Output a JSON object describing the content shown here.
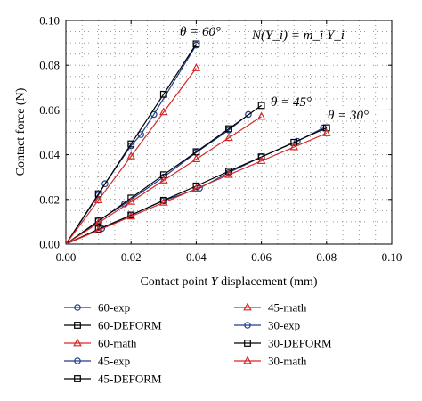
{
  "chart_data": {
    "type": "line",
    "xlabel_parts": [
      "Contact point ",
      "Y",
      " displacement (mm)"
    ],
    "ylabel": "Contact force (N)",
    "xlim": [
      0,
      0.1
    ],
    "ylim": [
      0,
      0.1
    ],
    "xticks": [
      "0.00",
      "0.02",
      "0.04",
      "0.06",
      "0.08",
      "0.10"
    ],
    "yticks": [
      "0.00",
      "0.02",
      "0.04",
      "0.06",
      "0.08",
      "0.10"
    ],
    "grid": "dotted",
    "annotations": {
      "formula": "N(Y_i) = m_i Y_i",
      "theta60": "θ = 60°",
      "theta45": "θ = 45°",
      "theta30": "θ = 30°"
    },
    "colors": {
      "exp": "#1f3c88",
      "deform": "#000000",
      "math": "#d62728"
    },
    "series": [
      {
        "name": "60-exp",
        "marker": "circle",
        "color": "#1f3c88",
        "x": [
          0,
          0.01,
          0.012,
          0.02,
          0.023,
          0.027,
          0.04
        ],
        "y": [
          0,
          0.022,
          0.027,
          0.044,
          0.049,
          0.058,
          0.089
        ]
      },
      {
        "name": "60-DEFORM",
        "marker": "square",
        "color": "#000000",
        "x": [
          0,
          0.01,
          0.02,
          0.03,
          0.04
        ],
        "y": [
          0,
          0.0225,
          0.0448,
          0.067,
          0.0895
        ]
      },
      {
        "name": "60-math",
        "marker": "triangle",
        "color": "#d62728",
        "x": [
          0,
          0.01,
          0.02,
          0.03,
          0.04
        ],
        "y": [
          0,
          0.0197,
          0.0393,
          0.059,
          0.0787
        ]
      },
      {
        "name": "45-exp",
        "marker": "circle",
        "color": "#1f3c88",
        "x": [
          0,
          0.01,
          0.018,
          0.03,
          0.04,
          0.05,
          0.056
        ],
        "y": [
          0,
          0.0105,
          0.018,
          0.03,
          0.041,
          0.051,
          0.058
        ]
      },
      {
        "name": "45-DEFORM",
        "marker": "square",
        "color": "#000000",
        "x": [
          0,
          0.01,
          0.02,
          0.03,
          0.04,
          0.05,
          0.06
        ],
        "y": [
          0,
          0.0103,
          0.0206,
          0.031,
          0.0413,
          0.0516,
          0.062
        ]
      },
      {
        "name": "45-math",
        "marker": "triangle",
        "color": "#d62728",
        "x": [
          0,
          0.01,
          0.02,
          0.03,
          0.04,
          0.05,
          0.06
        ],
        "y": [
          0,
          0.0095,
          0.019,
          0.0285,
          0.038,
          0.0475,
          0.057
        ]
      },
      {
        "name": "30-exp",
        "marker": "circle",
        "color": "#1f3c88",
        "x": [
          0,
          0.011,
          0.02,
          0.03,
          0.041,
          0.05,
          0.06,
          0.071,
          0.079
        ],
        "y": [
          0,
          0.007,
          0.013,
          0.0195,
          0.025,
          0.032,
          0.039,
          0.046,
          0.052
        ]
      },
      {
        "name": "30-DEFORM",
        "marker": "square",
        "color": "#000000",
        "x": [
          0,
          0.01,
          0.02,
          0.03,
          0.04,
          0.05,
          0.06,
          0.07,
          0.08
        ],
        "y": [
          0,
          0.0067,
          0.013,
          0.0196,
          0.026,
          0.0326,
          0.039,
          0.0455,
          0.052
        ]
      },
      {
        "name": "30-math",
        "marker": "triangle",
        "color": "#d62728",
        "x": [
          0,
          0.01,
          0.02,
          0.03,
          0.04,
          0.05,
          0.06,
          0.07,
          0.08
        ],
        "y": [
          0,
          0.0062,
          0.0124,
          0.0186,
          0.0248,
          0.031,
          0.0372,
          0.0434,
          0.0496
        ]
      }
    ],
    "legend_columns": [
      [
        "60-exp",
        "60-DEFORM",
        "60-math",
        "45-exp",
        "45-DEFORM"
      ],
      [
        "45-math",
        "30-exp",
        "30-DEFORM",
        "30-math"
      ]
    ]
  }
}
